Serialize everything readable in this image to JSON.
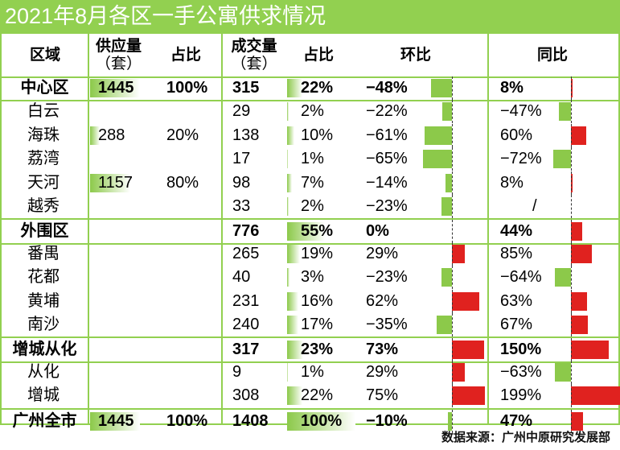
{
  "title": "2021年8月各区一手公寓供求情况",
  "source": "数据来源：广州中原研究发展部",
  "colors": {
    "header": "#92d050",
    "positive_bar": "#e0221f",
    "negative_bar": "#8cc94a"
  },
  "chart_data": {
    "type": "table",
    "headers": {
      "region": "区域",
      "supply": "供应量",
      "supply_unit": "（套）",
      "supply_share": "占比",
      "deal": "成交量",
      "deal_unit": "（套）",
      "deal_share": "占比",
      "mom": "环比",
      "yoy": "同比"
    },
    "rows": [
      {
        "region": "中心区",
        "bold": true,
        "supply": "1445",
        "supply_share": "100%",
        "deal": "315",
        "deal_share": "22%",
        "mom": "-48%",
        "yoy": "8%"
      },
      {
        "region": "白云",
        "bold": false,
        "supply": "",
        "supply_share": "",
        "deal": "29",
        "deal_share": "2%",
        "mom": "-22%",
        "yoy": "-47%"
      },
      {
        "region": "海珠",
        "bold": false,
        "supply": "288",
        "supply_share": "20%",
        "deal": "138",
        "deal_share": "10%",
        "mom": "-61%",
        "yoy": "60%"
      },
      {
        "region": "荔湾",
        "bold": false,
        "supply": "",
        "supply_share": "",
        "deal": "17",
        "deal_share": "1%",
        "mom": "-65%",
        "yoy": "-72%"
      },
      {
        "region": "天河",
        "bold": false,
        "supply": "1157",
        "supply_share": "80%",
        "deal": "98",
        "deal_share": "7%",
        "mom": "-14%",
        "yoy": "8%"
      },
      {
        "region": "越秀",
        "bold": false,
        "supply": "",
        "supply_share": "",
        "deal": "33",
        "deal_share": "2%",
        "mom": "-23%",
        "yoy": "/"
      },
      {
        "region": "外围区",
        "bold": true,
        "supply": "",
        "supply_share": "",
        "deal": "776",
        "deal_share": "55%",
        "mom": "0%",
        "yoy": "44%"
      },
      {
        "region": "番禺",
        "bold": false,
        "supply": "",
        "supply_share": "",
        "deal": "265",
        "deal_share": "19%",
        "mom": "29%",
        "yoy": "85%"
      },
      {
        "region": "花都",
        "bold": false,
        "supply": "",
        "supply_share": "",
        "deal": "40",
        "deal_share": "3%",
        "mom": "-23%",
        "yoy": "-64%"
      },
      {
        "region": "黄埔",
        "bold": false,
        "supply": "",
        "supply_share": "",
        "deal": "231",
        "deal_share": "16%",
        "mom": "62%",
        "yoy": "63%"
      },
      {
        "region": "南沙",
        "bold": false,
        "supply": "",
        "supply_share": "",
        "deal": "240",
        "deal_share": "17%",
        "mom": "-35%",
        "yoy": "67%"
      },
      {
        "region": "增城从化",
        "bold": true,
        "supply": "",
        "supply_share": "",
        "deal": "317",
        "deal_share": "23%",
        "mom": "73%",
        "yoy": "150%"
      },
      {
        "region": "从化",
        "bold": false,
        "supply": "",
        "supply_share": "",
        "deal": "9",
        "deal_share": "1%",
        "mom": "29%",
        "yoy": "-63%"
      },
      {
        "region": "增城",
        "bold": false,
        "supply": "",
        "supply_share": "",
        "deal": "308",
        "deal_share": "22%",
        "mom": "75%",
        "yoy": "199%"
      },
      {
        "region": "广州全市",
        "bold": true,
        "supply": "1445",
        "supply_share": "100%",
        "deal": "1408",
        "deal_share": "100%",
        "mom": "-10%",
        "yoy": "47%"
      }
    ]
  }
}
